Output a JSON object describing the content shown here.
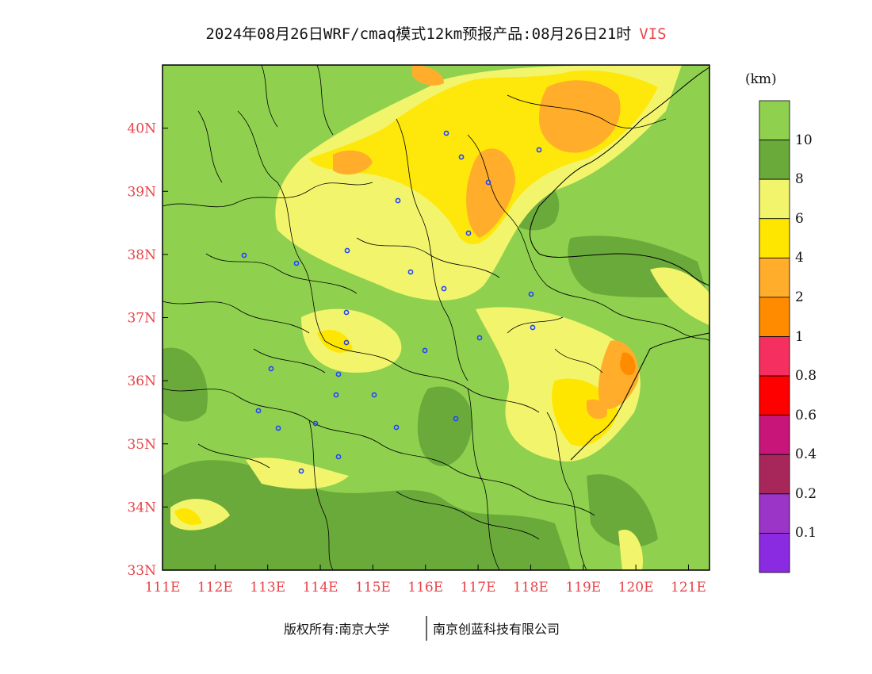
{
  "title": {
    "main": "2024年08月26日WRF/cmaq模式12km预报产品:08月26日21时",
    "variable": "VIS"
  },
  "legend": {
    "unit": "(km)",
    "bins": [
      {
        "color": "#8fd14f"
      },
      {
        "color": "#6aaa3a"
      },
      {
        "color": "#f2f56c"
      },
      {
        "color": "#ffe600"
      },
      {
        "color": "#ffad2a"
      },
      {
        "color": "#ff8c00"
      },
      {
        "color": "#f53060"
      },
      {
        "color": "#ff0000"
      },
      {
        "color": "#c8157a"
      },
      {
        "color": "#a8275a"
      },
      {
        "color": "#9b35c7"
      },
      {
        "color": "#8a2be2"
      }
    ],
    "labels": [
      "10",
      "8",
      "6",
      "4",
      "2",
      "1",
      "0.8",
      "0.6",
      "0.4",
      "0.2",
      "0.1"
    ]
  },
  "map": {
    "lon_ticks": [
      "111E",
      "112E",
      "113E",
      "114E",
      "115E",
      "116E",
      "117E",
      "118E",
      "119E",
      "120E",
      "121E"
    ],
    "lat_ticks": [
      "33N",
      "34N",
      "35N",
      "36N",
      "37N",
      "38N",
      "39N",
      "40N"
    ],
    "lon_range": [
      111,
      121.4
    ],
    "lat_range": [
      33,
      41
    ]
  },
  "footer": {
    "left": "版权所有:南京大学",
    "right": "南京创蓝科技有限公司"
  }
}
